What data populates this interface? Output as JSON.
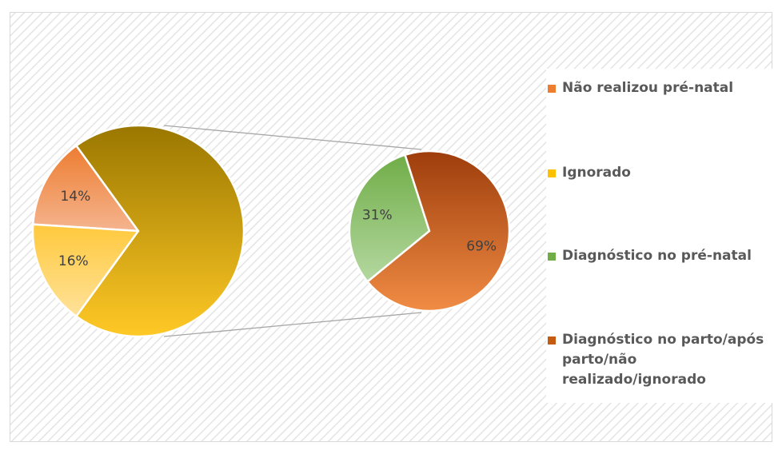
{
  "chart_data": {
    "type": "pie-of-pie",
    "main": {
      "categories": [
        "Não realizou pré-natal",
        "Ignorado",
        null
      ],
      "values": [
        14,
        16,
        70
      ],
      "value_labels": [
        "14%",
        "16%",
        null
      ],
      "colors": [
        "#ed7d31",
        "#ffc000",
        "#b8900a"
      ]
    },
    "secondary": {
      "categories": [
        "Diagnóstico no pré-natal",
        "Diagnóstico no parto/após parto/não realizado/ignorado"
      ],
      "values": [
        31,
        69
      ],
      "value_labels": [
        "31%",
        "69%"
      ],
      "colors": [
        "#70ad47",
        "#c55a11"
      ]
    },
    "legend": "right"
  }
}
